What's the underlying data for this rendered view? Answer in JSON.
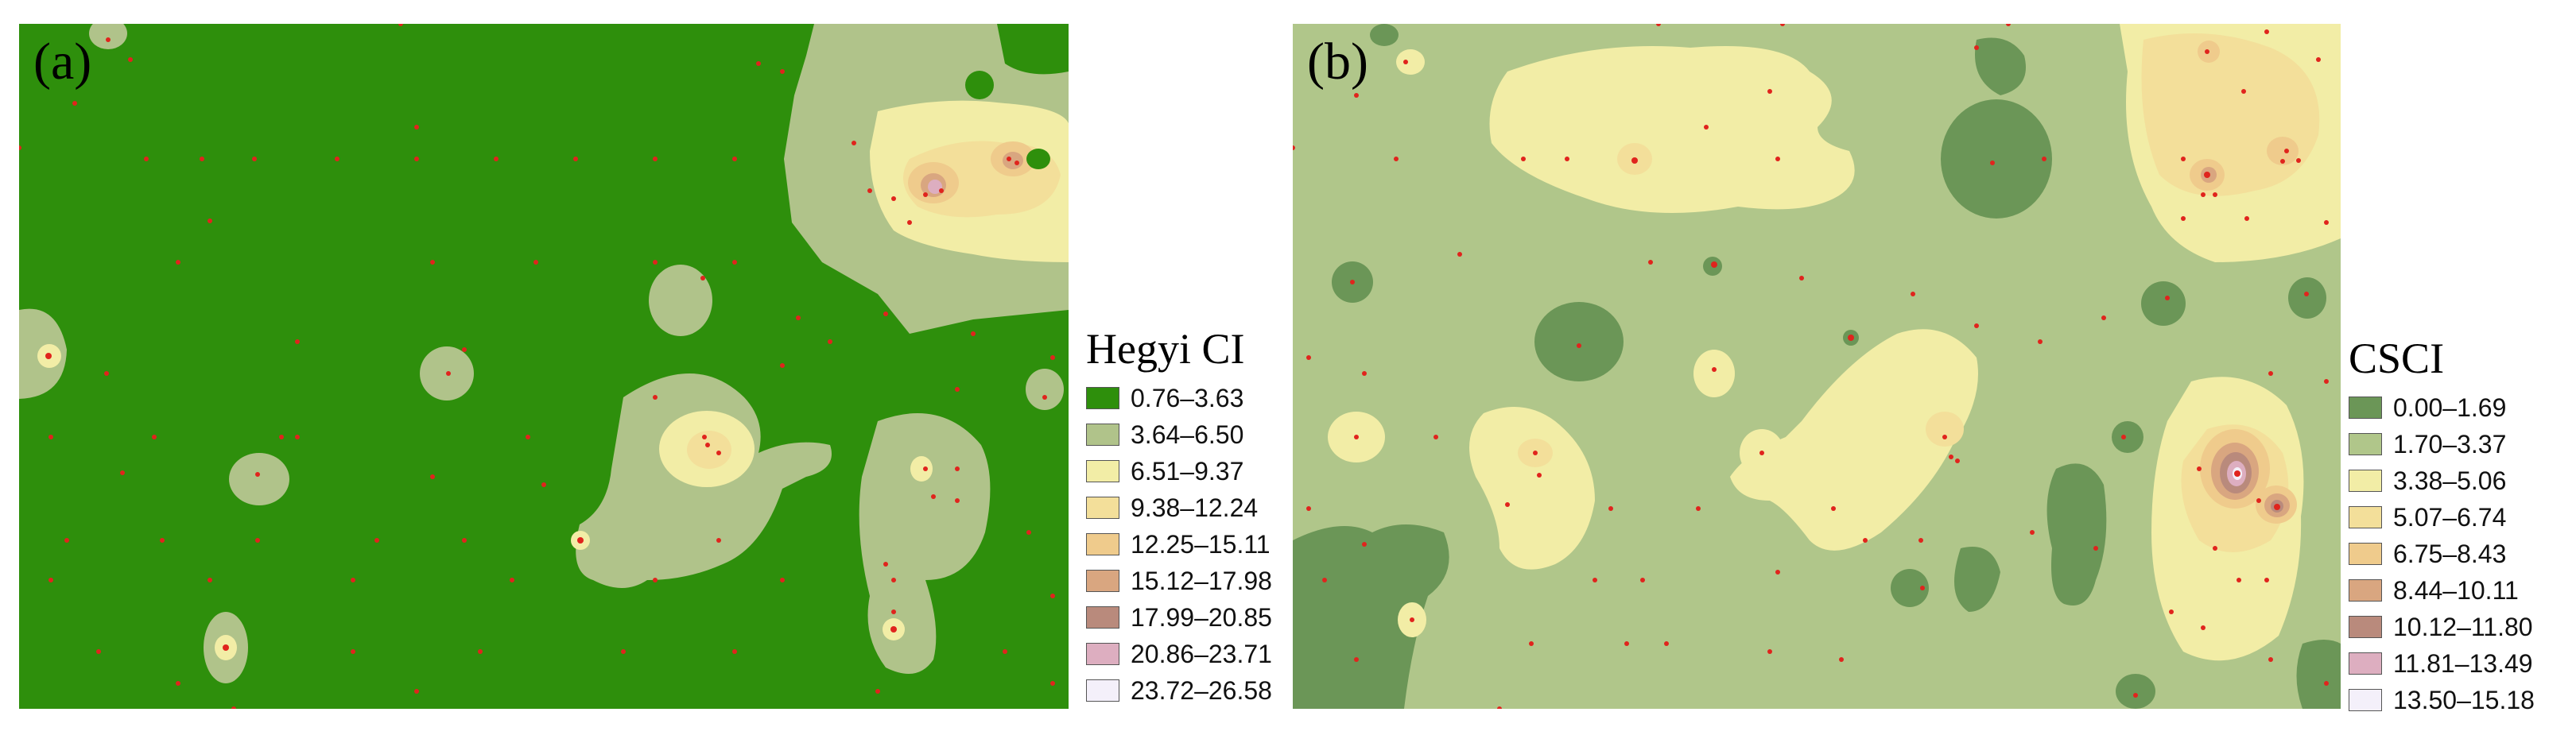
{
  "panels": [
    {
      "label": "(a)",
      "legend": {
        "title": "Hegyi  CI",
        "classes": [
          {
            "range": "0.76–3.63",
            "color": "#2e8f0c"
          },
          {
            "range": "3.64–6.50",
            "color": "#b0c38a"
          },
          {
            "range": "6.51–9.37",
            "color": "#f2eda6"
          },
          {
            "range": "9.38–12.24",
            "color": "#f3df9a"
          },
          {
            "range": "12.25–15.11",
            "color": "#efcb8c"
          },
          {
            "range": "15.12–17.98",
            "color": "#d9a680"
          },
          {
            "range": "17.99–20.85",
            "color": "#b98a7c"
          },
          {
            "range": "20.86–23.71",
            "color": "#ddaec0"
          },
          {
            "range": "23.72–26.58",
            "color": "#f4f0fa"
          }
        ]
      }
    },
    {
      "label": "(b)",
      "legend": {
        "title": "CSCI",
        "classes": [
          {
            "range": "0.00–1.69",
            "color": "#6b9657"
          },
          {
            "range": "1.70–3.37",
            "color": "#b0c68a"
          },
          {
            "range": "3.38–5.06",
            "color": "#f2eda6"
          },
          {
            "range": "5.07–6.74",
            "color": "#f3df9a"
          },
          {
            "range": "6.75–8.43",
            "color": "#efcb8c"
          },
          {
            "range": "8.44–10.11",
            "color": "#d9a680"
          },
          {
            "range": "10.12–11.80",
            "color": "#b98a7c"
          },
          {
            "range": "11.81–13.49",
            "color": "#ddaec0"
          },
          {
            "range": "13.50–15.18",
            "color": "#f4f0fa"
          }
        ]
      }
    }
  ],
  "point_color": "#e0241d"
}
